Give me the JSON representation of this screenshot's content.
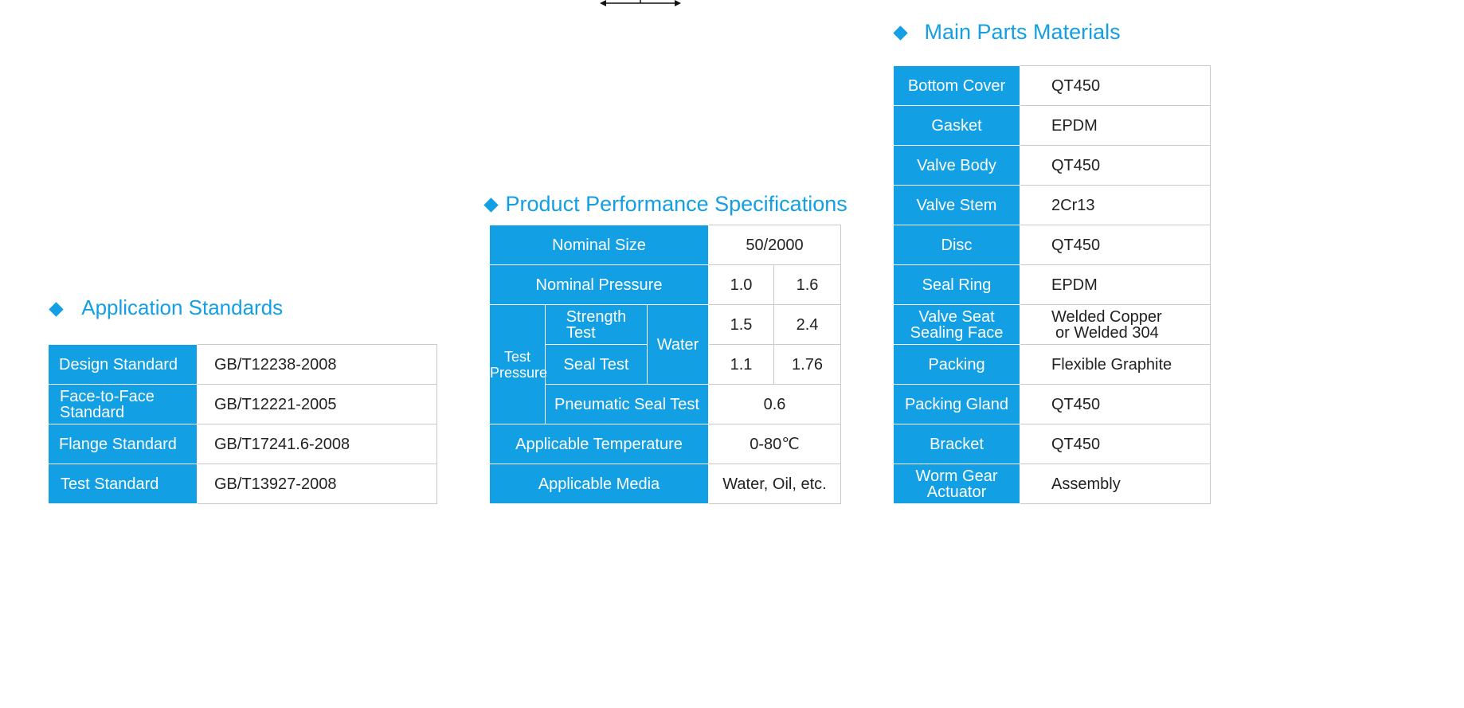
{
  "application_standards": {
    "title": "Application Standards",
    "rows": [
      {
        "label": "Design Standard",
        "value": "GB/T12238-2008"
      },
      {
        "label": "Face-to-Face Standard",
        "label_lines": [
          "Face-to-Face",
          "Standard"
        ],
        "value": "GB/T12221-2005"
      },
      {
        "label": "Flange Standard",
        "value": "GB/T17241.6-2008"
      },
      {
        "label": "Test Standard",
        "value": "GB/T13927-2008"
      }
    ]
  },
  "performance": {
    "title": "Product Performance Specifications",
    "nominal_size": {
      "label": "Nominal Size",
      "value": "50/2000"
    },
    "nominal_pressure": {
      "label": "Nominal Pressure",
      "values": [
        "1.0",
        "1.6"
      ]
    },
    "test_pressure": {
      "label_lines": [
        "Test",
        "Pressure"
      ],
      "strength_test": {
        "label_lines": [
          "Strength",
          "Test"
        ],
        "values": [
          "1.5",
          "2.4"
        ]
      },
      "seal_test": {
        "label": "Seal Test",
        "values": [
          "1.1",
          "1.76"
        ]
      },
      "medium": "Water",
      "pneumatic": {
        "label": "Pneumatic Seal Test",
        "value": "0.6"
      }
    },
    "temperature": {
      "label": "Applicable Temperature",
      "value": "0-80℃"
    },
    "media": {
      "label": "Applicable Media",
      "value": "Water, Oil, etc."
    }
  },
  "materials": {
    "title": "Main Parts Materials",
    "rows": [
      {
        "part": "Bottom Cover",
        "material": "QT450"
      },
      {
        "part": "Gasket",
        "material": "EPDM"
      },
      {
        "part": "Valve Body",
        "material": "QT450"
      },
      {
        "part": "Valve Stem",
        "material": "2Cr13"
      },
      {
        "part": "Disc",
        "material": "QT450"
      },
      {
        "part": "Seal Ring",
        "material": "EPDM"
      },
      {
        "part": "Valve Seat Sealing Face",
        "part_lines": [
          "Valve Seat",
          "Sealing Face"
        ],
        "material": "Welded Copper or Welded 304",
        "material_lines": [
          "Welded Copper",
          "or Welded 304"
        ]
      },
      {
        "part": "Packing",
        "material": "Flexible Graphite"
      },
      {
        "part": "Packing Gland",
        "material": "QT450"
      },
      {
        "part": "Bracket",
        "material": "QT450"
      },
      {
        "part": "Worm Gear Actuator",
        "part_lines": [
          "Worm Gear",
          "Actuator"
        ],
        "material": "Assembly"
      }
    ]
  },
  "colors": {
    "accent": "#129fe4",
    "border": "#c9c9c9",
    "text": "#222222"
  }
}
